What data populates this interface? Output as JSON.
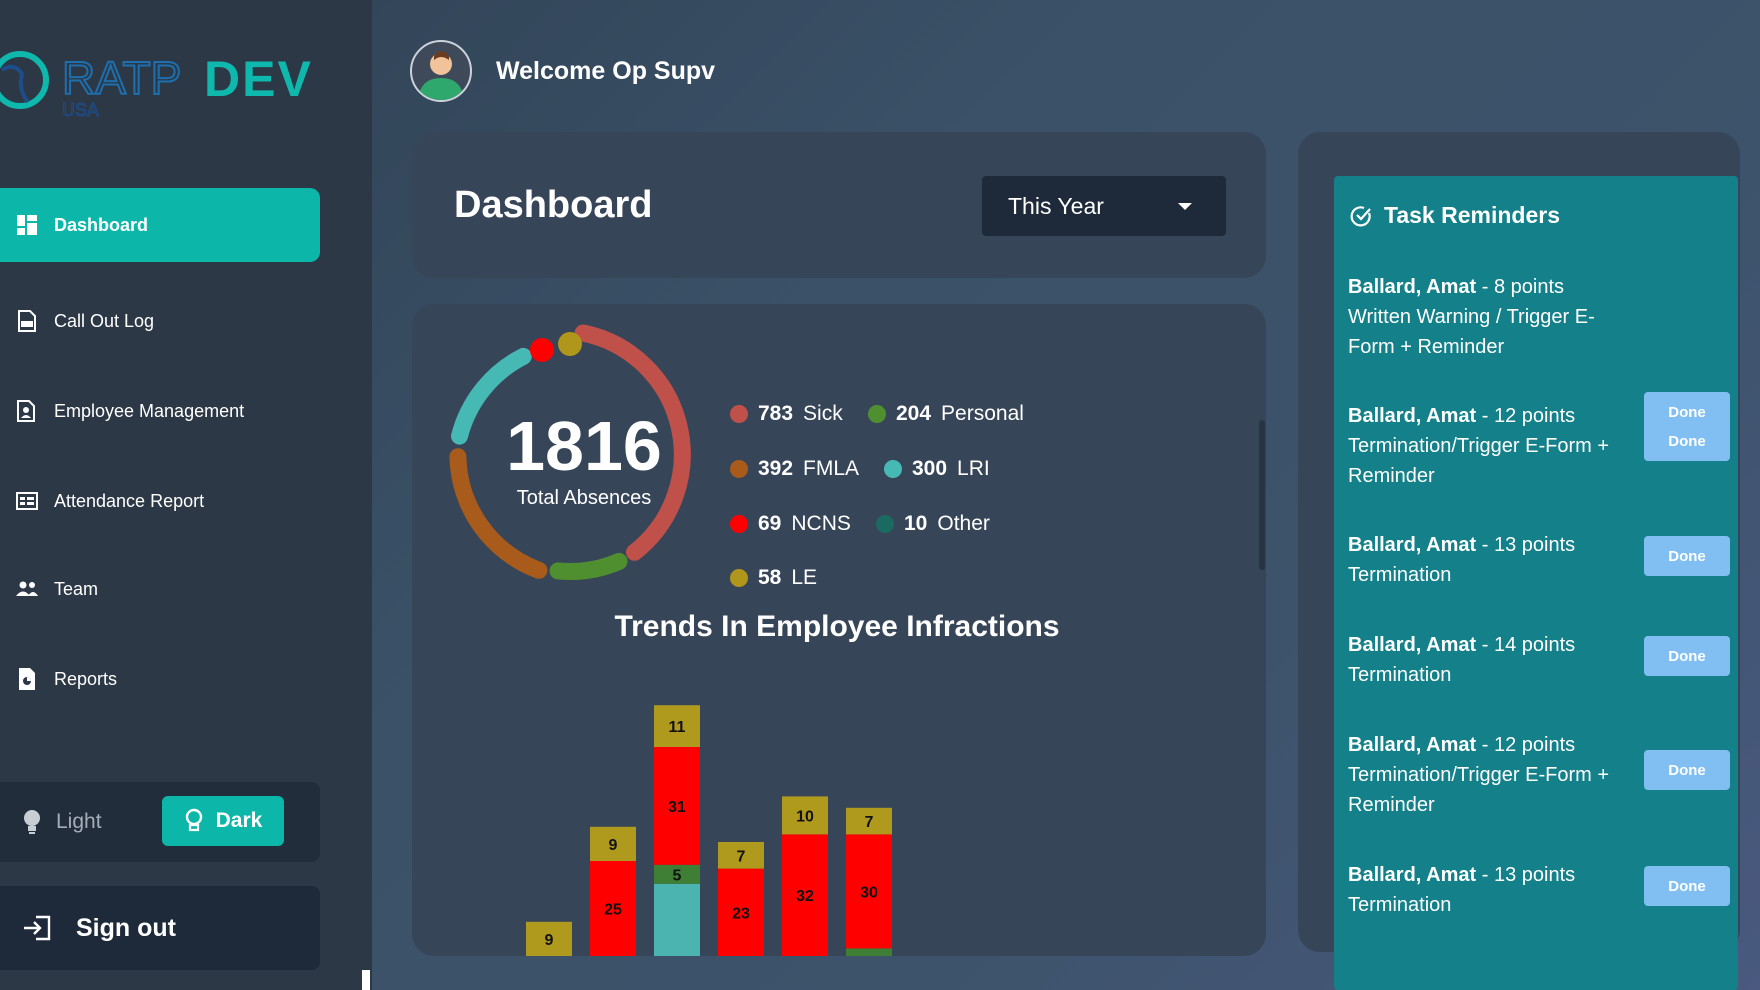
{
  "logo": {
    "primary": "RATP",
    "secondary": "DEV",
    "sub": "USA"
  },
  "header": {
    "welcome": "Welcome Op Supv"
  },
  "sidebar": {
    "items": [
      {
        "label": "Dashboard",
        "icon": "dashboard-icon",
        "active": true
      },
      {
        "label": "Call Out Log",
        "icon": "log-icon"
      },
      {
        "label": "Employee Management",
        "icon": "employee-icon"
      },
      {
        "label": "Attendance Report",
        "icon": "report-icon"
      },
      {
        "label": "Team",
        "icon": "team-icon"
      },
      {
        "label": "Reports",
        "icon": "file-icon"
      }
    ],
    "theme": {
      "light": "Light",
      "dark": "Dark",
      "selected": "Dark"
    },
    "signout": "Sign out"
  },
  "dashboard": {
    "title": "Dashboard",
    "period": "This Year"
  },
  "absences": {
    "total": "1816",
    "total_label": "Total Absences",
    "legend": [
      {
        "value": "783",
        "label": "Sick",
        "color": "#c0514a"
      },
      {
        "value": "204",
        "label": "Personal",
        "color": "#4f8f2f"
      },
      {
        "value": "392",
        "label": "FMLA",
        "color": "#a85b1b"
      },
      {
        "value": "300",
        "label": "LRI",
        "color": "#47b9b4"
      },
      {
        "value": "69",
        "label": "NCNS",
        "color": "#ff0000"
      },
      {
        "value": "10",
        "label": "Other",
        "color": "#1b6a62"
      },
      {
        "value": "58",
        "label": "LE",
        "color": "#b0961a"
      }
    ]
  },
  "chart_data": {
    "type": "bar",
    "stacked": true,
    "title": "Trends In Employee Infractions",
    "categories": [
      "",
      "",
      "",
      "",
      "",
      ""
    ],
    "series": [
      {
        "color": "#4bb3b0",
        "values": [
          0,
          0,
          19,
          0,
          0,
          0
        ]
      },
      {
        "color": "#3f7f35",
        "values": [
          0,
          0,
          5,
          0,
          0,
          2
        ]
      },
      {
        "color": "#ff0000",
        "values": [
          0,
          25,
          31,
          23,
          32,
          30
        ]
      },
      {
        "color": "#b09a1d",
        "values": [
          9,
          9,
          11,
          7,
          10,
          7
        ]
      }
    ],
    "labels": [
      [
        null,
        null,
        "",
        null,
        null,
        null
      ],
      [
        null,
        null,
        "5",
        null,
        null,
        ""
      ],
      [
        null,
        "25",
        "31",
        "23",
        "32",
        "30"
      ],
      [
        "9",
        "9",
        "11",
        "7",
        "10",
        "7"
      ]
    ],
    "grid": false,
    "legend": "none"
  },
  "tasks": {
    "title": "Task Reminders",
    "items": [
      {
        "name": "Ballard, Amat",
        "rest": " - 8 points Written Warning / Trigger E-Form + Reminder",
        "action": "Done"
      },
      {
        "name": "Ballard, Amat",
        "rest": " - 12 points Termination/Trigger E-Form + Reminder",
        "action": "Done"
      },
      {
        "name": "Ballard, Amat",
        "rest": " - 13 points Termination",
        "action": "Done"
      },
      {
        "name": "Ballard, Amat",
        "rest": " - 14 points Termination",
        "action": "Done"
      },
      {
        "name": "Ballard, Amat",
        "rest": " - 12 points Termination/Trigger E-Form + Reminder",
        "action": "Done"
      },
      {
        "name": "Ballard, Amat",
        "rest": " - 13 points Termination",
        "action": "Done"
      }
    ]
  }
}
